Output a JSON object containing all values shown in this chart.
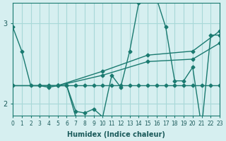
{
  "xlabel": "Humidex (Indice chaleur)",
  "xlim": [
    0,
    23
  ],
  "ylim": [
    1.85,
    3.25
  ],
  "yticks": [
    2,
    3
  ],
  "background_color": "#d6eff0",
  "grid_color": "#a8d8d8",
  "line_color": "#1a7a70",
  "lines": [
    {
      "x": [
        0,
        1,
        2,
        3,
        4,
        5,
        6,
        7,
        8,
        9,
        10,
        11,
        12,
        13,
        14,
        15,
        16,
        17,
        18,
        19,
        20,
        21,
        22,
        23
      ],
      "y": [
        2.95,
        2.65,
        2.22,
        2.22,
        2.22,
        2.22,
        2.22,
        1.9,
        1.88,
        1.93,
        1.83,
        2.35,
        2.2,
        2.65,
        3.25,
        3.3,
        3.3,
        2.95,
        2.28,
        2.28,
        2.45,
        1.7,
        2.85,
        2.85
      ]
    },
    {
      "x": [
        3,
        4,
        5,
        6,
        7,
        8,
        9,
        10,
        11,
        12,
        13,
        14,
        15,
        16,
        17,
        18,
        19,
        20,
        21,
        22,
        23
      ],
      "y": [
        2.22,
        2.2,
        2.22,
        2.22,
        2.22,
        2.22,
        2.22,
        2.22,
        2.22,
        2.22,
        2.22,
        2.22,
        2.22,
        2.22,
        2.22,
        2.22,
        2.22,
        2.22,
        2.22,
        2.22,
        2.22
      ]
    },
    {
      "x": [
        0,
        5,
        10,
        15,
        20,
        23
      ],
      "y": [
        2.22,
        2.22,
        2.4,
        2.6,
        2.65,
        2.9
      ]
    },
    {
      "x": [
        0,
        5,
        10,
        15,
        20,
        23
      ],
      "y": [
        2.22,
        2.22,
        2.35,
        2.52,
        2.55,
        2.75
      ]
    },
    {
      "x": [
        6,
        7,
        8,
        9
      ],
      "y": [
        2.22,
        1.83,
        1.83,
        1.83
      ]
    }
  ]
}
